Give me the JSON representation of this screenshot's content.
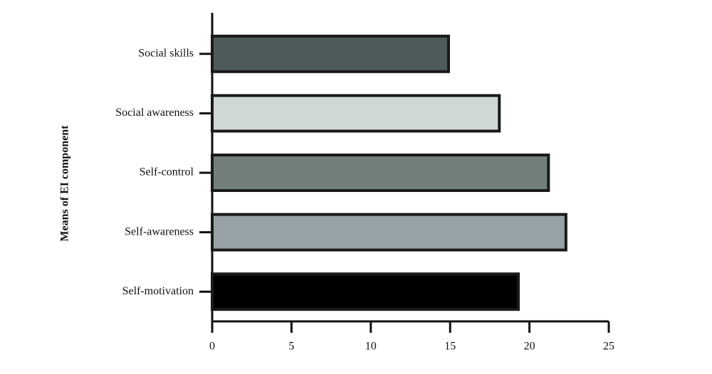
{
  "chart_data": {
    "type": "bar",
    "orientation": "horizontal",
    "ylabel": "Means of EI component",
    "categories": [
      "Social skills",
      "Social awareness",
      "Self-control",
      "Self-awareness",
      "Self-motivation"
    ],
    "values": [
      14.9,
      18.1,
      21.2,
      22.3,
      19.3
    ],
    "colors": [
      "#4f5a5c",
      "#d0d8d7",
      "#727f7d",
      "#96a2a5",
      "#000000"
    ],
    "xlim": [
      0,
      25
    ],
    "xticks": [
      0,
      5,
      10,
      15,
      20,
      25
    ],
    "grid": false
  }
}
